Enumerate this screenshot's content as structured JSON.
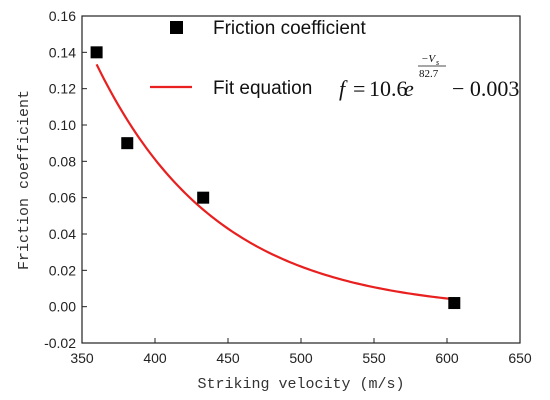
{
  "chart_data": {
    "type": "scatter",
    "xlabel": "Striking velocity (m/s)",
    "ylabel": "Friction coefficient",
    "xlim": [
      350,
      650
    ],
    "ylim": [
      -0.02,
      0.16
    ],
    "x_ticks": [
      "350",
      "400",
      "450",
      "500",
      "550",
      "600",
      "650"
    ],
    "y_ticks": [
      "-0.02",
      "0.00",
      "0.02",
      "0.04",
      "0.06",
      "0.08",
      "0.10",
      "0.12",
      "0.14",
      "0.16"
    ],
    "grid": false,
    "legend_position": "top-right",
    "series": [
      {
        "name": "Friction coefficient",
        "kind": "scatter",
        "marker": "square",
        "color": "#000000",
        "x": [
          360,
          381,
          433,
          605
        ],
        "y": [
          0.14,
          0.09,
          0.06,
          0.002
        ]
      },
      {
        "name": "Fit equation",
        "kind": "line",
        "color": "#e8201f",
        "x_range": [
          360,
          605
        ],
        "equation": {
          "lhs": "f",
          "eq": "=",
          "coef": "10.6",
          "base": "e",
          "exp_numerator": "−V",
          "exp_numerator_sub": "s",
          "exp_denominator": "82.7",
          "tail": "− 0.003"
        }
      }
    ]
  }
}
